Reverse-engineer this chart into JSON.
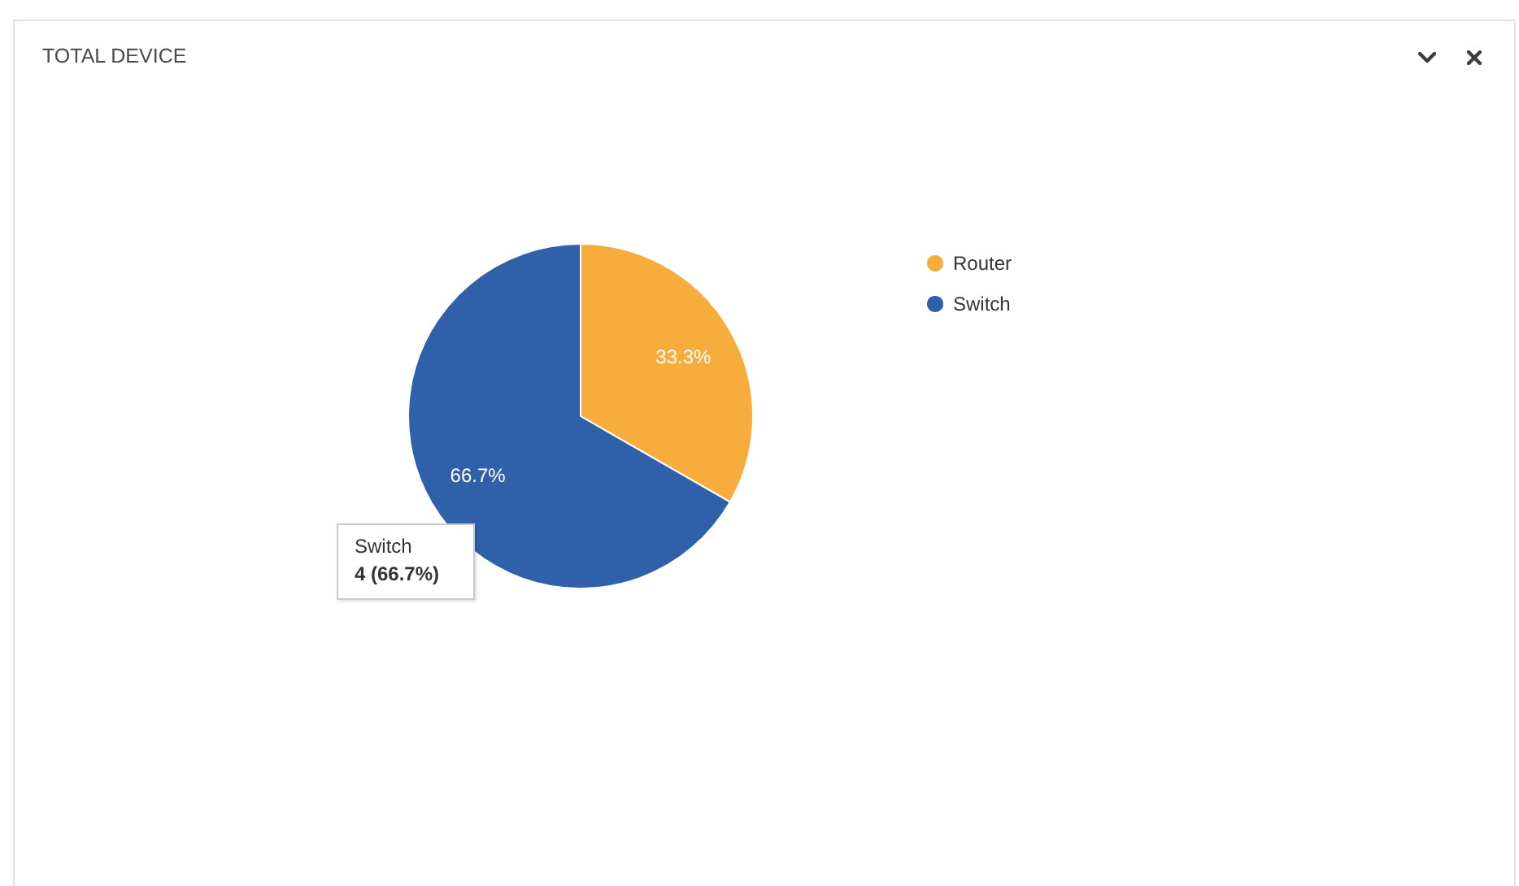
{
  "chart_data": {
    "type": "pie",
    "title": "TOTAL DEVICE",
    "categories": [
      "Router",
      "Switch"
    ],
    "values": [
      33.3,
      66.7
    ],
    "colors": [
      "#f7ad3b",
      "#2f60a9"
    ],
    "value_labels": [
      "33.3%",
      "66.7%"
    ],
    "legend": "top right",
    "annotations": [
      "Switch\n4 (66.7%)"
    ]
  }
}
